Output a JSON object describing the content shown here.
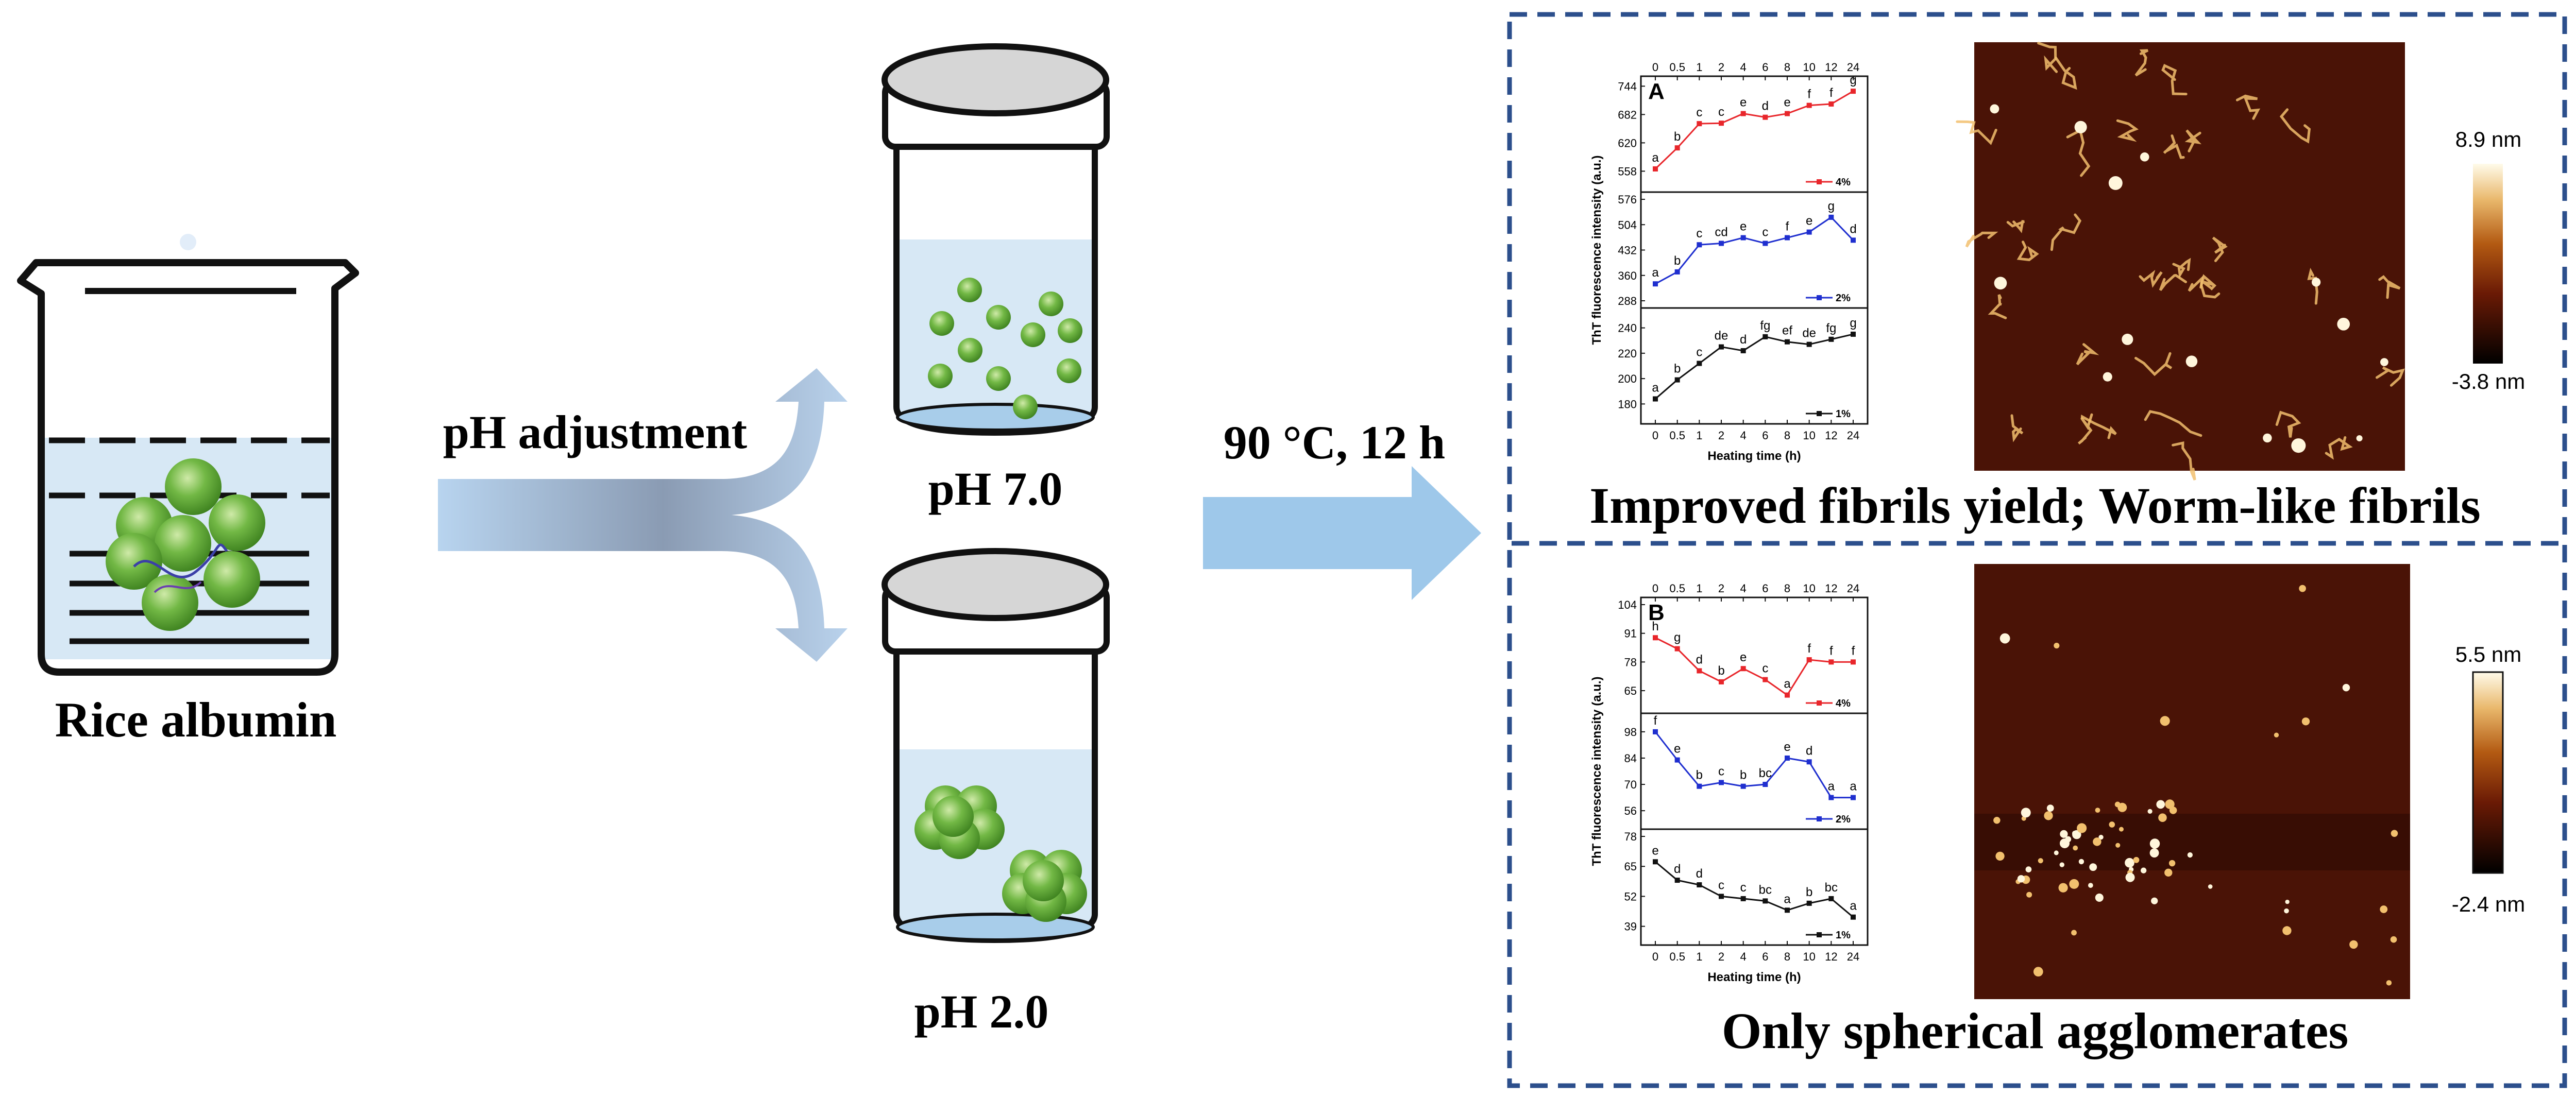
{
  "labels": {
    "rice_albumin": "Rice albumin",
    "ph_adjustment": "pH adjustment",
    "ph7": "pH 7.0",
    "ph2": "pH 2.0",
    "heating": "90 °C, 12 h",
    "result_top": "Improved fibrils yield; Worm-like fibrils",
    "result_bottom": "Only spherical agglomerates"
  },
  "afm": {
    "top": {
      "max": "8.9 nm",
      "min": "-3.8 nm"
    },
    "bottom": {
      "max": "5.5 nm",
      "min": "-2.4 nm"
    }
  },
  "colors": {
    "red": "#e8262b",
    "blue": "#1f2fcf",
    "black": "#111111",
    "dash_box": "#2c4f8c",
    "arrow_blue": "#9ec8ea",
    "liquid": "#d7e8f5",
    "sphere": "#6fb640"
  },
  "chart_data": [
    {
      "type": "line",
      "panel": "A",
      "xlabel": "Heating time (h)",
      "ylabel": "ThT fluorescence intensity (a.u.)",
      "x_ticks": [
        "0",
        "0.5",
        "1",
        "2",
        "4",
        "6",
        "8",
        "10",
        "12",
        "24"
      ],
      "subplots": [
        {
          "legend": "4%",
          "color": "red",
          "ylim": [
            528,
            750
          ],
          "yticks": [
            "558",
            "620",
            "682",
            "744"
          ],
          "values": [
            563,
            609,
            662,
            663,
            684,
            676,
            684,
            702,
            705,
            733
          ],
          "letters": [
            "a",
            "b",
            "c",
            "c",
            "e",
            "d",
            "e",
            "f",
            "f",
            "g"
          ]
        },
        {
          "legend": "2%",
          "color": "blue",
          "ylim": [
            288,
            576
          ],
          "yticks": [
            "288",
            "360",
            "432",
            "504",
            "576"
          ],
          "values": [
            336,
            370,
            447,
            451,
            467,
            451,
            467,
            483,
            525,
            460
          ],
          "letters": [
            "a",
            "b",
            "c",
            "cd",
            "e",
            "c",
            "f",
            "e",
            "g",
            "d"
          ]
        },
        {
          "legend": "1%",
          "color": "black",
          "ylim": [
            170,
            250
          ],
          "yticks": [
            "180",
            "200",
            "220",
            "240"
          ],
          "values": [
            184,
            199,
            212,
            225,
            222,
            233,
            229,
            227,
            231,
            235
          ],
          "letters": [
            "a",
            "b",
            "c",
            "de",
            "d",
            "fg",
            "ef",
            "de",
            "fg",
            "g"
          ]
        }
      ]
    },
    {
      "type": "line",
      "panel": "B",
      "xlabel": "Heating time (h)",
      "ylabel": "ThT fluorescence intensity (a.u.)",
      "x_ticks": [
        "0",
        "0.5",
        "1",
        "2",
        "4",
        "6",
        "8",
        "10",
        "12",
        "24"
      ],
      "subplots": [
        {
          "legend": "4%",
          "color": "red",
          "ylim": [
            58,
            104
          ],
          "yticks": [
            "65",
            "78",
            "91",
            "104"
          ],
          "values": [
            89,
            84,
            74,
            69,
            75,
            70,
            63,
            79,
            78,
            78
          ],
          "letters": [
            "h",
            "g",
            "d",
            "b",
            "e",
            "c",
            "a",
            "f",
            "f",
            "f"
          ]
        },
        {
          "legend": "2%",
          "color": "blue",
          "ylim": [
            50,
            104
          ],
          "yticks": [
            "56",
            "70",
            "84",
            "98"
          ],
          "values": [
            98,
            83,
            69,
            71,
            69,
            70,
            84,
            82,
            63,
            63
          ],
          "letters": [
            "f",
            "e",
            "b",
            "c",
            "b",
            "bc",
            "e",
            "d",
            "a",
            "a"
          ]
        },
        {
          "legend": "1%",
          "color": "black",
          "ylim": [
            34,
            78
          ],
          "yticks": [
            "39",
            "52",
            "65",
            "78"
          ],
          "values": [
            67,
            59,
            57,
            52,
            51,
            50,
            46,
            49,
            51,
            43
          ],
          "letters": [
            "e",
            "d",
            "d",
            "c",
            "c",
            "bc",
            "a",
            "b",
            "bc",
            "a"
          ]
        }
      ]
    }
  ]
}
